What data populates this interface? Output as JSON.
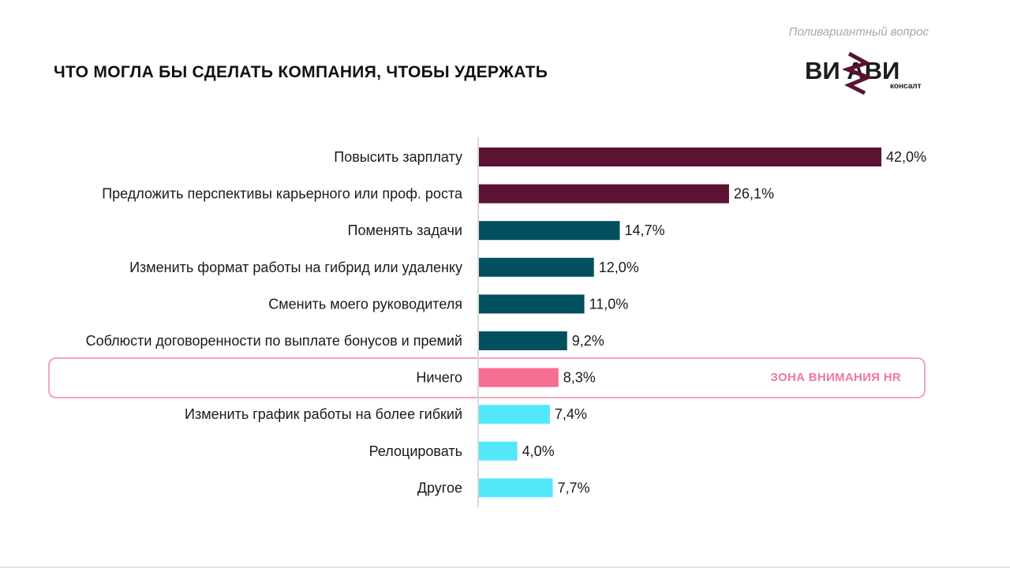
{
  "header": {
    "subtitle": "Поливариантный вопрос",
    "title": "ЧТО МОГЛА БЫ СДЕЛАТЬ КОМПАНИЯ, ЧТОБЫ УДЕРЖАТЬ"
  },
  "logo": {
    "word": "ВИ  АВИ",
    "sub": "консалт"
  },
  "highlight": {
    "label": "ЗОНА ВНИМАНИЯ HR",
    "border_color": "#f2a6bb",
    "label_color": "#f0799a"
  },
  "chart_data": {
    "type": "bar",
    "orientation": "horizontal",
    "categories": [
      "Повысить зарплату",
      "Предложить перспективы карьерного или проф. роста",
      "Поменять задачи",
      "Изменить формат работы на гибрид или удаленку",
      "Сменить моего руководителя",
      "Соблюсти договоренности по выплате бонусов и премий",
      "Ничего",
      "Изменить график работы на более гибкий",
      "Релоцировать",
      "Другое"
    ],
    "values": [
      42.0,
      26.1,
      14.7,
      12.0,
      11.0,
      9.2,
      8.3,
      7.4,
      4.0,
      7.7
    ],
    "value_labels": [
      "42,0%",
      "26,1%",
      "14,7%",
      "12,0%",
      "11,0%",
      "9,2%",
      "8,3%",
      "7,4%",
      "4,0%",
      "7,7%"
    ],
    "colors": [
      "#5c1232",
      "#5c1232",
      "#02505f",
      "#02505f",
      "#02505f",
      "#02505f",
      "#f56d91",
      "#52e8fa",
      "#52e8fa",
      "#52e8fa"
    ],
    "xlim": [
      0,
      42.0
    ],
    "grid": false,
    "legend": "none"
  }
}
